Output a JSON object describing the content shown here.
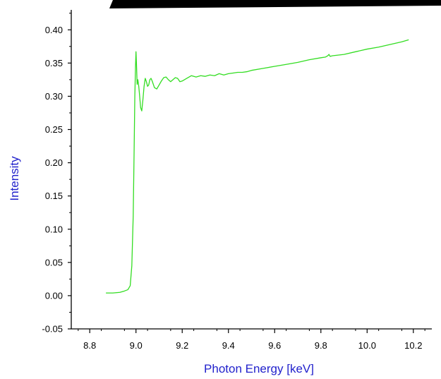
{
  "chart_data": {
    "type": "line",
    "title": "",
    "xlabel": "Photon Energy [keV]",
    "ylabel": "Intensity",
    "xlim": [
      8.72,
      10.28
    ],
    "ylim": [
      -0.05,
      0.43
    ],
    "grid": false,
    "x_ticks": [
      "8.8",
      "9.0",
      "9.2",
      "9.4",
      "9.6",
      "9.8",
      "10.0",
      "10.2"
    ],
    "y_ticks": [
      "-0.05",
      "0.00",
      "0.05",
      "0.10",
      "0.15",
      "0.20",
      "0.25",
      "0.30",
      "0.35",
      "0.40"
    ],
    "series": [
      {
        "color": "#33dd22",
        "x": [
          8.87,
          8.9,
          8.93,
          8.95,
          8.965,
          8.975,
          8.982,
          8.988,
          8.992,
          8.995,
          8.998,
          9.0,
          9.002,
          9.005,
          9.008,
          9.012,
          9.016,
          9.02,
          9.025,
          9.03,
          9.035,
          9.04,
          9.045,
          9.05,
          9.055,
          9.06,
          9.065,
          9.07,
          9.08,
          9.09,
          9.1,
          9.11,
          9.12,
          9.13,
          9.14,
          9.15,
          9.16,
          9.17,
          9.18,
          9.19,
          9.2,
          9.22,
          9.24,
          9.26,
          9.28,
          9.3,
          9.32,
          9.34,
          9.36,
          9.38,
          9.4,
          9.42,
          9.44,
          9.46,
          9.48,
          9.5,
          9.55,
          9.6,
          9.65,
          9.7,
          9.75,
          9.8,
          9.82,
          9.83,
          9.835,
          9.84,
          9.85,
          9.9,
          9.95,
          10.0,
          10.05,
          10.1,
          10.15,
          10.18
        ],
        "y": [
          0.004,
          0.004,
          0.005,
          0.007,
          0.009,
          0.015,
          0.045,
          0.12,
          0.22,
          0.3,
          0.345,
          0.367,
          0.35,
          0.318,
          0.325,
          0.315,
          0.3,
          0.283,
          0.278,
          0.295,
          0.315,
          0.327,
          0.322,
          0.315,
          0.317,
          0.325,
          0.327,
          0.323,
          0.313,
          0.311,
          0.317,
          0.323,
          0.328,
          0.329,
          0.325,
          0.322,
          0.325,
          0.328,
          0.327,
          0.322,
          0.323,
          0.327,
          0.331,
          0.329,
          0.331,
          0.33,
          0.332,
          0.331,
          0.334,
          0.332,
          0.334,
          0.335,
          0.336,
          0.336,
          0.337,
          0.339,
          0.342,
          0.345,
          0.348,
          0.351,
          0.355,
          0.358,
          0.359,
          0.361,
          0.363,
          0.36,
          0.361,
          0.363,
          0.367,
          0.371,
          0.374,
          0.378,
          0.382,
          0.385
        ]
      }
    ]
  }
}
